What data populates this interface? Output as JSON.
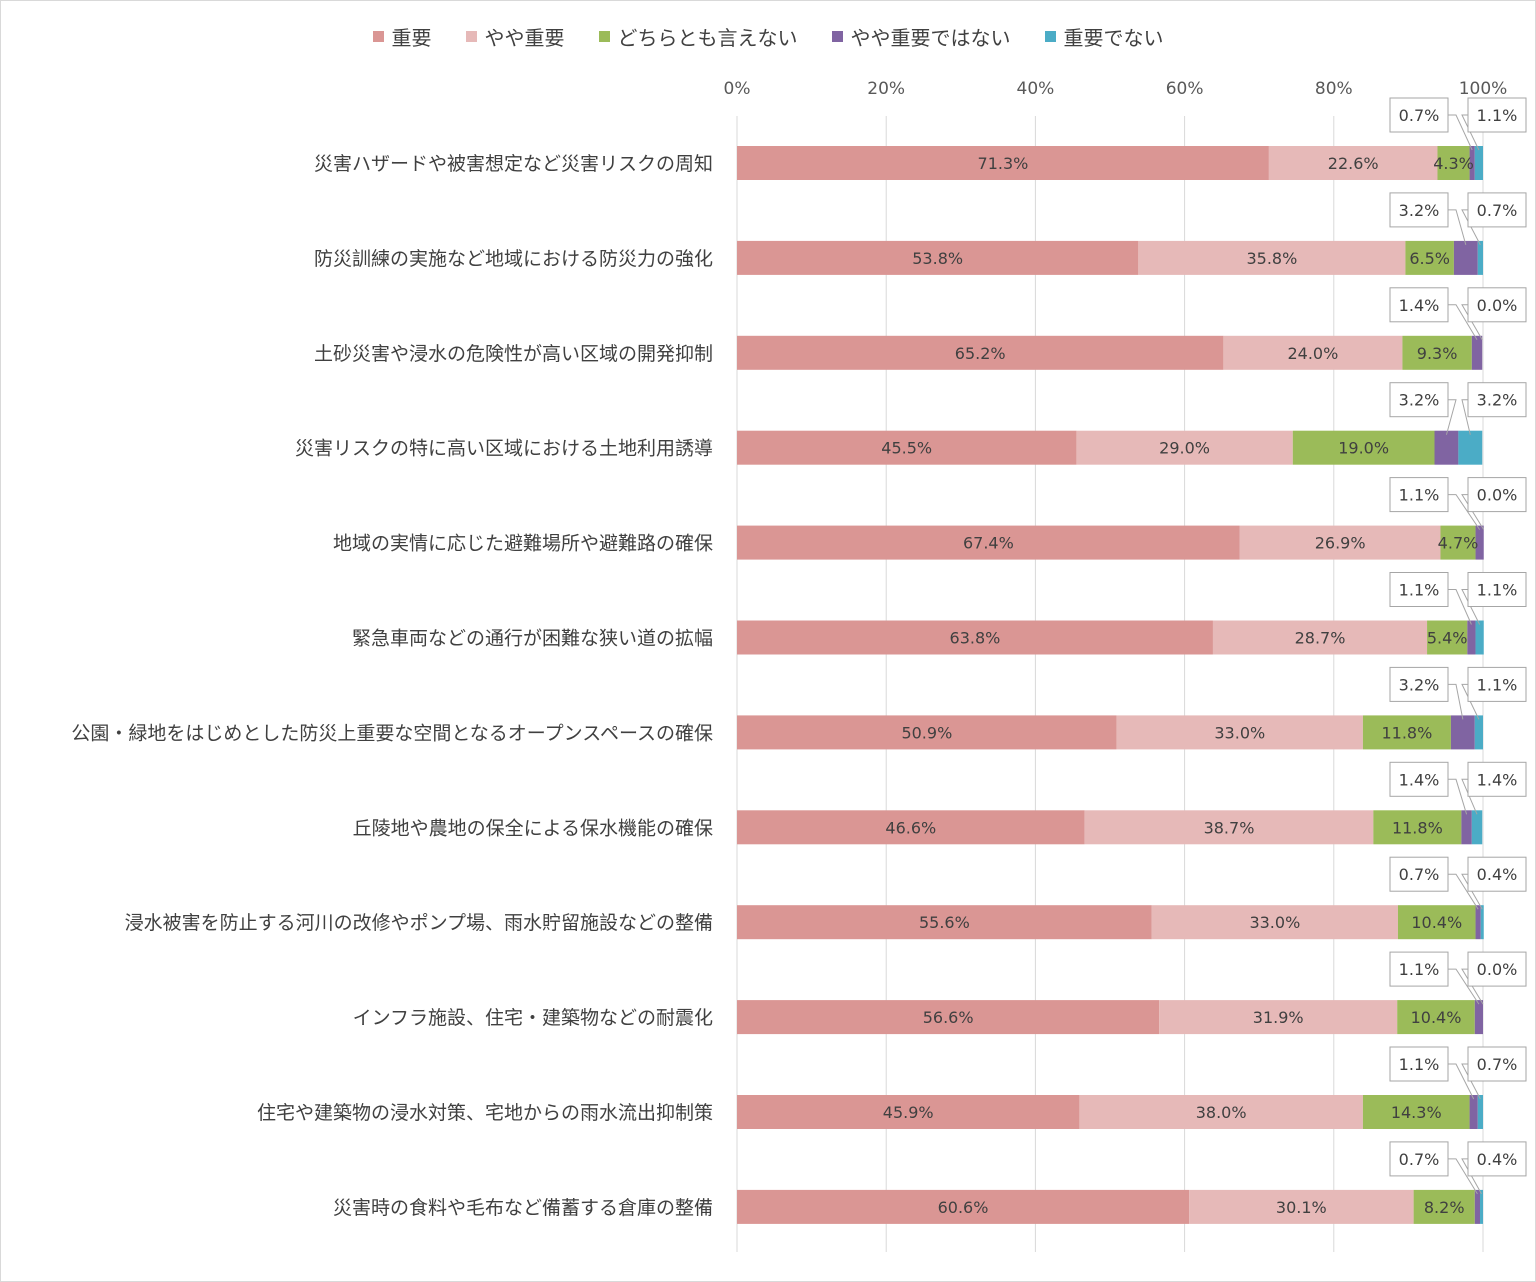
{
  "chart_data": {
    "type": "bar",
    "orientation": "horizontal",
    "stacked": true,
    "x_ticks": [
      "0%",
      "20%",
      "40%",
      "60%",
      "80%",
      "100%"
    ],
    "xlim": [
      0,
      100
    ],
    "grid": "vertical",
    "legend_position": "top",
    "series": [
      {
        "name": "重要",
        "color": "#da9694"
      },
      {
        "name": "やや重要",
        "color": "#e6b9b8"
      },
      {
        "name": "どちらとも言えない",
        "color": "#9bbb59"
      },
      {
        "name": "やや重要ではない",
        "color": "#8064a2"
      },
      {
        "name": "重要でない",
        "color": "#4bacc6"
      }
    ],
    "categories": [
      "災害ハザードや被害想定など災害リスクの周知",
      "防災訓練の実施など地域における防災力の強化",
      "土砂災害や浸水の危険性が高い区域の開発抑制",
      "災害リスクの特に高い区域における土地利用誘導",
      "地域の実情に応じた避難場所や避難路の確保",
      "緊急車両などの通行が困難な狭い道の拡幅",
      "公園・緑地をはじめとした防災上重要な空間となるオープンスペースの確保",
      "丘陵地や農地の保全による保水機能の確保",
      "浸水被害を防止する河川の改修やポンプ場、雨水貯留施設などの整備",
      "インフラ施設、住宅・建築物などの耐震化",
      "住宅や建築物の浸水対策、宅地からの雨水流出抑制策",
      "災害時の食料や毛布など備蓄する倉庫の整備"
    ],
    "values": [
      [
        71.3,
        22.6,
        4.3,
        0.7,
        1.1
      ],
      [
        53.8,
        35.8,
        6.5,
        3.2,
        0.7
      ],
      [
        65.2,
        24.0,
        9.3,
        1.4,
        0.0
      ],
      [
        45.5,
        29.0,
        19.0,
        3.2,
        3.2
      ],
      [
        67.4,
        26.9,
        4.7,
        1.1,
        0.0
      ],
      [
        63.8,
        28.7,
        5.4,
        1.1,
        1.1
      ],
      [
        50.9,
        33.0,
        11.8,
        3.2,
        1.1
      ],
      [
        46.6,
        38.7,
        11.8,
        1.4,
        1.4
      ],
      [
        55.6,
        33.0,
        10.4,
        0.7,
        0.4
      ],
      [
        56.6,
        31.9,
        10.4,
        1.1,
        0.0
      ],
      [
        45.9,
        38.0,
        14.3,
        1.1,
        0.7
      ],
      [
        60.6,
        30.1,
        8.2,
        0.7,
        0.4
      ]
    ],
    "labels": [
      [
        "71.3%",
        "22.6%",
        "4.3%",
        "0.7%",
        "1.1%"
      ],
      [
        "53.8%",
        "35.8%",
        "6.5%",
        "3.2%",
        "0.7%"
      ],
      [
        "65.2%",
        "24.0%",
        "9.3%",
        "1.4%",
        "0.0%"
      ],
      [
        "45.5%",
        "29.0%",
        "19.0%",
        "3.2%",
        "3.2%"
      ],
      [
        "67.4%",
        "26.9%",
        "4.7%",
        "1.1%",
        "0.0%"
      ],
      [
        "63.8%",
        "28.7%",
        "5.4%",
        "1.1%",
        "1.1%"
      ],
      [
        "50.9%",
        "33.0%",
        "11.8%",
        "3.2%",
        "1.1%"
      ],
      [
        "46.6%",
        "38.7%",
        "11.8%",
        "1.4%",
        "1.4%"
      ],
      [
        "55.6%",
        "33.0%",
        "10.4%",
        "0.7%",
        "0.4%"
      ],
      [
        "56.6%",
        "31.9%",
        "10.4%",
        "1.1%",
        "0.0%"
      ],
      [
        "45.9%",
        "38.0%",
        "14.3%",
        "1.1%",
        "0.7%"
      ],
      [
        "60.6%",
        "30.1%",
        "8.2%",
        "0.7%",
        "0.4%"
      ]
    ]
  }
}
